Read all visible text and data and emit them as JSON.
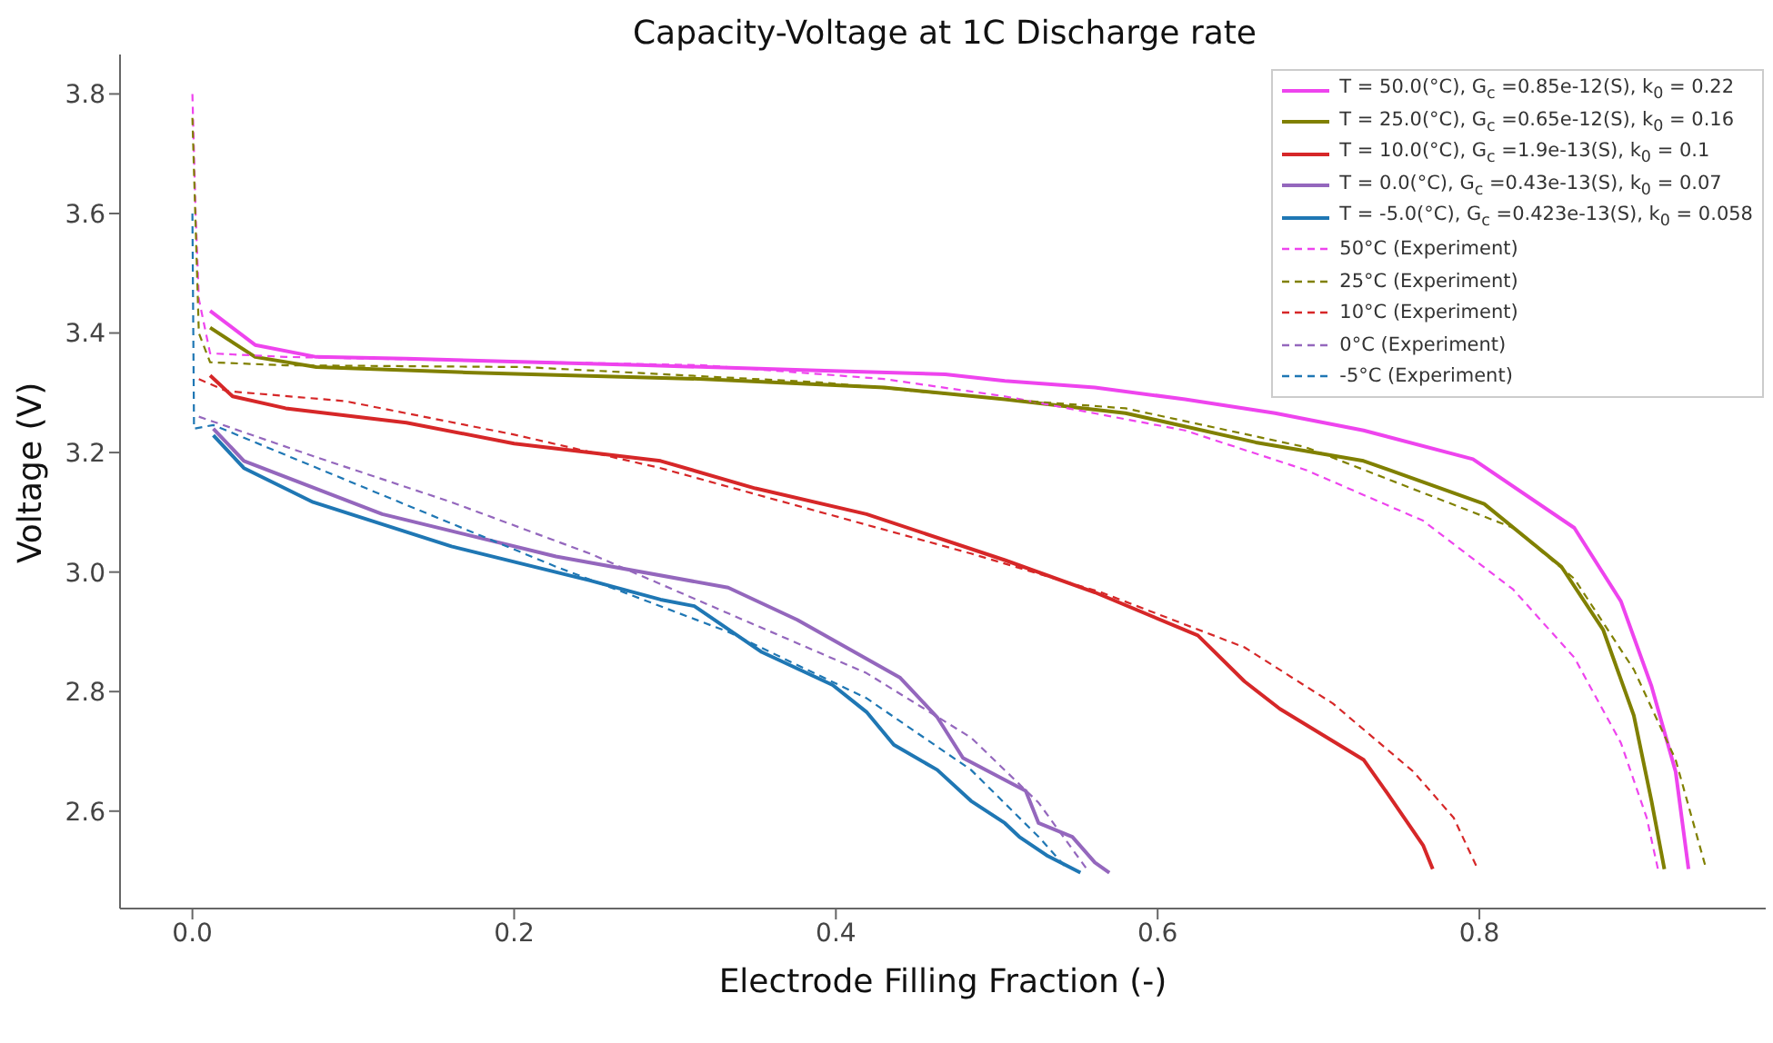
{
  "chart_data": {
    "type": "line",
    "title": "Capacity-Voltage at 1C Discharge rate",
    "xlabel": "Electrode Filling Fraction (-)",
    "ylabel": "Voltage (V)",
    "xlim": [
      -0.045,
      0.978
    ],
    "ylim": [
      2.437,
      3.866
    ],
    "xticks": [
      {
        "value": 0,
        "label": "0.0"
      },
      0.2,
      0.4,
      0.6,
      0.8
    ],
    "yticks": [
      2.6,
      2.8,
      {
        "value": 3,
        "label": "3.0"
      },
      3.2,
      3.4,
      3.6,
      3.8
    ],
    "grid": false,
    "legend": "top right",
    "marker": "none",
    "series": [
      {
        "name": "T = 50.0(°C),  G$_{c}$ =0.85e-12(S), k$_{0}$ = 0.22",
        "color": "#ee44ee",
        "line_style": "solid",
        "x": [
          0.011,
          0.039,
          0.077,
          0.133,
          0.282,
          0.393,
          0.468,
          0.505,
          0.561,
          0.617,
          0.673,
          0.728,
          0.796,
          0.859,
          0.888,
          0.907,
          0.922,
          0.93
        ],
        "values": [
          3.437,
          3.38,
          3.36,
          3.357,
          3.346,
          3.337,
          3.331,
          3.32,
          3.309,
          3.289,
          3.266,
          3.237,
          3.189,
          3.074,
          2.951,
          2.809,
          2.666,
          2.503
        ]
      },
      {
        "name": "T = 25.0(°C),  G$_{c}$ =0.65e-12(S), k$_{0}$ = 0.16",
        "color": "#808000",
        "line_style": "solid",
        "x": [
          0.011,
          0.039,
          0.077,
          0.17,
          0.318,
          0.43,
          0.505,
          0.58,
          0.661,
          0.728,
          0.803,
          0.851,
          0.877,
          0.896,
          0.907,
          0.915
        ],
        "values": [
          3.409,
          3.36,
          3.343,
          3.334,
          3.323,
          3.309,
          3.289,
          3.266,
          3.217,
          3.186,
          3.114,
          3.009,
          2.903,
          2.76,
          2.617,
          2.503
        ]
      },
      {
        "name": "T = 10.0(°C),  G$_{c}$ =1.9e-13(S), k$_{0}$ = 0.1",
        "color": "#d62728",
        "line_style": "solid",
        "x": [
          0.011,
          0.025,
          0.058,
          0.133,
          0.2,
          0.291,
          0.35,
          0.419,
          0.505,
          0.561,
          0.625,
          0.654,
          0.676,
          0.728,
          0.743,
          0.765,
          0.771
        ],
        "values": [
          3.329,
          3.294,
          3.274,
          3.25,
          3.215,
          3.186,
          3.14,
          3.097,
          3.02,
          2.966,
          2.894,
          2.817,
          2.771,
          2.686,
          2.629,
          2.543,
          2.503
        ]
      },
      {
        "name": "T = 0.0(°C),  G$_{c}$ =0.43e-13(S), k$_{0}$ = 0.07",
        "color": "#9467bd",
        "line_style": "solid",
        "x": [
          0.013,
          0.032,
          0.118,
          0.226,
          0.333,
          0.376,
          0.44,
          0.463,
          0.479,
          0.518,
          0.526,
          0.547,
          0.561,
          0.57
        ],
        "values": [
          3.24,
          3.186,
          3.097,
          3.026,
          2.974,
          2.92,
          2.823,
          2.757,
          2.689,
          2.634,
          2.58,
          2.557,
          2.514,
          2.497
        ]
      },
      {
        "name": "T = -5.0(°C), G$_{c}$ =0.423e-13(S), k$_{0}$ = 0.058",
        "color": "#1f77b4",
        "line_style": "solid",
        "x": [
          0.013,
          0.032,
          0.075,
          0.161,
          0.247,
          0.291,
          0.312,
          0.354,
          0.398,
          0.419,
          0.436,
          0.463,
          0.484,
          0.505,
          0.514,
          0.531,
          0.552
        ],
        "values": [
          3.229,
          3.174,
          3.117,
          3.043,
          2.986,
          2.954,
          2.943,
          2.866,
          2.811,
          2.766,
          2.711,
          2.669,
          2.617,
          2.58,
          2.557,
          2.526,
          2.497
        ]
      },
      {
        "name": "50°C (Experiment)",
        "color": "#ee44ee",
        "line_style": "dashed",
        "x": [
          0.0,
          0.002,
          0.004,
          0.011,
          0.058,
          0.318,
          0.43,
          0.505,
          0.617,
          0.692,
          0.765,
          0.821,
          0.859,
          0.888,
          0.904,
          0.911
        ],
        "values": [
          3.8,
          3.6,
          3.457,
          3.366,
          3.36,
          3.346,
          3.323,
          3.294,
          3.237,
          3.171,
          3.086,
          2.971,
          2.857,
          2.714,
          2.589,
          2.503
        ]
      },
      {
        "name": "25°C (Experiment)",
        "color": "#808000",
        "line_style": "dashed",
        "x": [
          0.0,
          0.004,
          0.011,
          0.058,
          0.207,
          0.393,
          0.505,
          0.58,
          0.692,
          0.821,
          0.859,
          0.896,
          0.922,
          0.941
        ],
        "values": [
          3.76,
          3.4,
          3.351,
          3.346,
          3.343,
          3.317,
          3.289,
          3.274,
          3.209,
          3.074,
          2.989,
          2.837,
          2.686,
          2.503
        ]
      },
      {
        "name": "10°C (Experiment)",
        "color": "#d62728",
        "line_style": "dashed",
        "x": [
          0.004,
          0.021,
          0.095,
          0.2,
          0.291,
          0.484,
          0.565,
          0.654,
          0.709,
          0.759,
          0.784,
          0.799
        ],
        "values": [
          3.323,
          3.303,
          3.286,
          3.23,
          3.174,
          3.031,
          2.966,
          2.874,
          2.78,
          2.666,
          2.589,
          2.503
        ]
      },
      {
        "name": "0°C (Experiment)",
        "color": "#9467bd",
        "line_style": "dashed",
        "x": [
          0.004,
          0.075,
          0.161,
          0.247,
          0.333,
          0.419,
          0.484,
          0.526,
          0.556
        ],
        "values": [
          3.26,
          3.194,
          3.117,
          3.031,
          2.931,
          2.831,
          2.723,
          2.614,
          2.503
        ]
      },
      {
        "name": "-5°C (Experiment)",
        "color": "#1f77b4",
        "line_style": "dashed",
        "x": [
          0.0,
          0.001,
          0.013,
          0.118,
          0.226,
          0.333,
          0.419,
          0.484,
          0.526,
          0.544
        ],
        "values": [
          3.6,
          3.24,
          3.246,
          3.129,
          3.009,
          2.9,
          2.789,
          2.669,
          2.557,
          2.503
        ]
      }
    ]
  }
}
